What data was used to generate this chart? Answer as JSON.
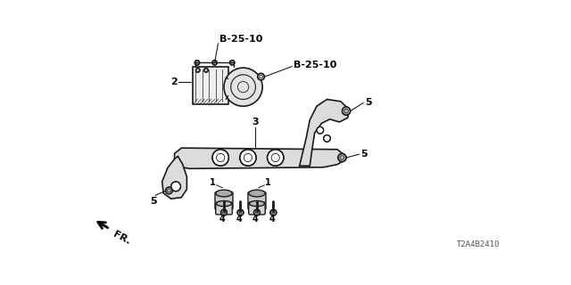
{
  "bg_color": "#ffffff",
  "fig_width": 6.4,
  "fig_height": 3.2,
  "part_id": "T2A4B2410",
  "line_color": "#1a1a1a",
  "text_color": "#000000",
  "label_B25_top": "B-25-10",
  "label_B25_right": "B-25-10",
  "label_2": "2",
  "label_3": "3",
  "label_5": "5",
  "label_1": "1",
  "label_4": "4",
  "label_fr": "FR.",
  "font_size_bold": 8,
  "font_size_small": 7,
  "font_size_pid": 6.5
}
